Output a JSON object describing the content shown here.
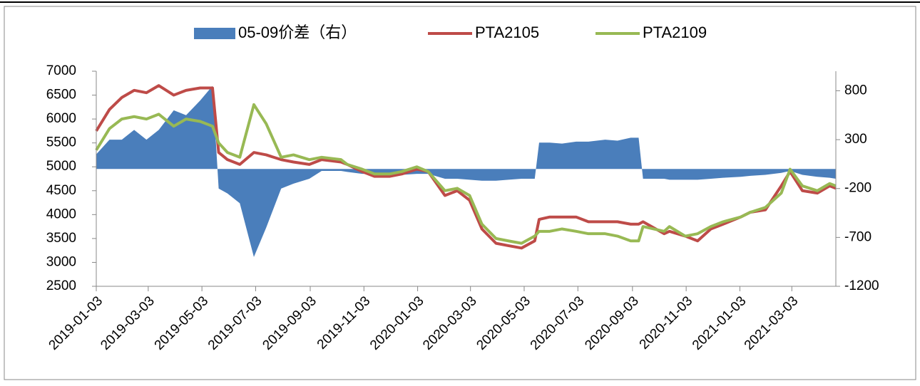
{
  "chart_data": {
    "type": "line",
    "x": [
      "2019-01-03",
      "2019-01-18",
      "2019-02-01",
      "2019-02-15",
      "2019-03-01",
      "2019-03-15",
      "2019-04-01",
      "2019-04-15",
      "2019-05-01",
      "2019-05-15",
      "2019-05-22",
      "2019-06-01",
      "2019-06-15",
      "2019-07-01",
      "2019-07-15",
      "2019-08-01",
      "2019-08-15",
      "2019-09-02",
      "2019-09-16",
      "2019-10-08",
      "2019-10-15",
      "2019-11-01",
      "2019-11-15",
      "2019-12-02",
      "2019-12-16",
      "2020-01-02",
      "2020-01-15",
      "2020-02-03",
      "2020-02-17",
      "2020-03-02",
      "2020-03-16",
      "2020-04-01",
      "2020-04-15",
      "2020-04-30",
      "2020-05-15",
      "2020-05-20",
      "2020-06-01",
      "2020-06-15",
      "2020-07-01",
      "2020-07-15",
      "2020-08-03",
      "2020-08-17",
      "2020-09-01",
      "2020-09-10",
      "2020-09-15",
      "2020-10-09",
      "2020-10-15",
      "2020-11-02",
      "2020-11-16",
      "2020-12-01",
      "2020-12-15",
      "2021-01-04",
      "2021-01-15",
      "2021-02-01",
      "2021-02-19",
      "2021-03-01",
      "2021-03-15",
      "2021-04-01",
      "2021-04-15",
      "2021-04-22"
    ],
    "series": [
      {
        "name": "05-09价差（右）",
        "type": "area",
        "axis": "y2",
        "color": "#4a7ebb",
        "values": [
          150,
          300,
          300,
          400,
          300,
          400,
          600,
          550,
          700,
          850,
          -200,
          -250,
          -350,
          -900,
          -600,
          -200,
          -150,
          -100,
          -20,
          -20,
          -30,
          -50,
          -50,
          -50,
          -60,
          -50,
          -50,
          -100,
          -100,
          -110,
          -120,
          -120,
          -110,
          -100,
          -100,
          270,
          270,
          260,
          280,
          280,
          300,
          290,
          320,
          320,
          -100,
          -100,
          -110,
          -110,
          -110,
          -100,
          -90,
          -80,
          -70,
          -60,
          -40,
          -20,
          -60,
          -80,
          -90,
          -100
        ]
      },
      {
        "name": "PTA2105",
        "type": "line",
        "color": "#be4b48",
        "values": [
          5750,
          6200,
          6450,
          6600,
          6550,
          6700,
          6500,
          6600,
          6650,
          6650,
          5300,
          5150,
          5050,
          5300,
          5250,
          5150,
          5100,
          5050,
          5150,
          5100,
          5050,
          4900,
          4800,
          4800,
          4850,
          4950,
          4900,
          4400,
          4500,
          4300,
          3700,
          3400,
          3350,
          3300,
          3450,
          3900,
          3950,
          3950,
          3950,
          3850,
          3850,
          3850,
          3800,
          3800,
          3850,
          3600,
          3650,
          3550,
          3450,
          3700,
          3800,
          3950,
          4050,
          4100,
          4600,
          4900,
          4500,
          4450,
          4600,
          4550
        ]
      },
      {
        "name": "PTA2109",
        "type": "line",
        "color": "#98b954",
        "values": [
          5350,
          5800,
          6000,
          6050,
          6000,
          6100,
          5850,
          6000,
          5950,
          5850,
          5500,
          5300,
          5200,
          6300,
          5900,
          5200,
          5250,
          5150,
          5200,
          5150,
          5050,
          4950,
          4850,
          4850,
          4900,
          5000,
          4900,
          4500,
          4550,
          4400,
          3800,
          3500,
          3450,
          3400,
          3550,
          3650,
          3650,
          3700,
          3650,
          3600,
          3600,
          3550,
          3450,
          3450,
          3750,
          3650,
          3750,
          3550,
          3600,
          3750,
          3850,
          3950,
          4050,
          4150,
          4450,
          4950,
          4600,
          4500,
          4650,
          4600
        ]
      }
    ],
    "xlim": [
      "2019-01-03",
      "2021-04-22"
    ],
    "xticks": [
      "2019-01-03",
      "2019-03-03",
      "2019-05-03",
      "2019-07-03",
      "2019-09-03",
      "2019-11-03",
      "2020-01-03",
      "2020-03-03",
      "2020-05-03",
      "2020-07-03",
      "2020-09-03",
      "2020-11-03",
      "2021-01-03",
      "2021-03-03"
    ],
    "ylim": [
      2500,
      7000
    ],
    "yticks": [
      2500,
      3000,
      3500,
      4000,
      4500,
      5000,
      5500,
      6000,
      6500,
      7000
    ],
    "y2lim": [
      -1200,
      1000
    ],
    "y2ticks": [
      -1200,
      -700,
      -200,
      300,
      800
    ],
    "legend": "top"
  }
}
